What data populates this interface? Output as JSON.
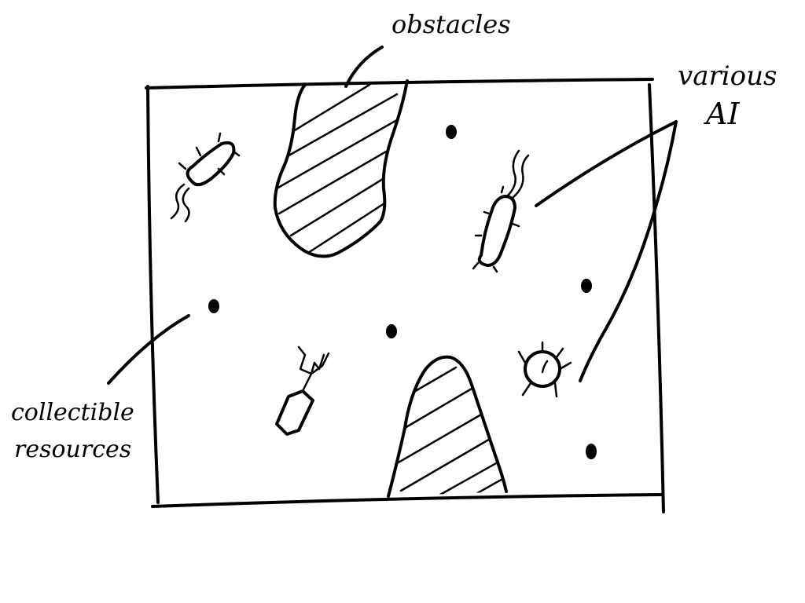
{
  "labels": {
    "obstacles": "obstacles",
    "ai_line1": "various",
    "ai_line2": "AI",
    "resources_line1": "collectible",
    "resources_line2": "resources"
  },
  "colors": {
    "ink": "#000000",
    "background": "#ffffff"
  },
  "legend_items": [
    {
      "name": "obstacles",
      "icon": "hatched-obstacle-icon"
    },
    {
      "name": "various AI",
      "icon": "microbe-agent-icon"
    },
    {
      "name": "collectible resources",
      "icon": "resource-dot-icon"
    }
  ]
}
